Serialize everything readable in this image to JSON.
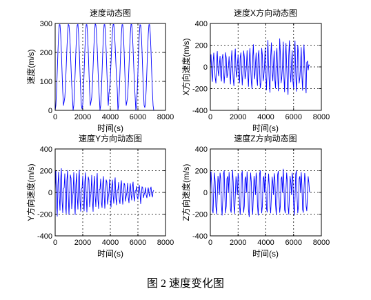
{
  "figure": {
    "caption": "图 2 速度变化图"
  },
  "chart_data": [
    {
      "type": "line",
      "title": "速度动态图",
      "xlabel": "时间(s)",
      "ylabel": "速度(m/s)",
      "xlim": [
        0,
        8000
      ],
      "ylim": [
        0,
        300
      ],
      "xticks": [
        0,
        2000,
        4000,
        6000,
        8000
      ],
      "yticks": [
        0,
        100,
        200,
        300
      ],
      "grid": true,
      "line_color": "#0000ff",
      "x": [
        0,
        50,
        100,
        150,
        200,
        250,
        300,
        350,
        400,
        450,
        500,
        550,
        600,
        650,
        700,
        750,
        800,
        850,
        900,
        950,
        1000,
        1050,
        1100,
        1150,
        1200,
        1250,
        1300,
        1350,
        1400,
        1450,
        1500,
        1550,
        1600,
        1650,
        1700,
        1750,
        1800,
        1850,
        1900,
        1950,
        2000,
        2050,
        2100,
        2150,
        2200,
        2250,
        2300,
        2350,
        2400,
        2450,
        2500,
        2550,
        2600,
        2650,
        2700,
        2750,
        2800,
        2850,
        2900,
        2950,
        3000,
        3050,
        3100,
        3150,
        3200,
        3250,
        3300,
        3350,
        3400,
        3450,
        3500,
        3550,
        3600,
        3650,
        3700,
        3750,
        3800,
        3850,
        3900,
        3950,
        4000,
        4050,
        4100,
        4150,
        4200,
        4250,
        4300,
        4350,
        4400,
        4450,
        4500,
        4550,
        4600,
        4650,
        4700,
        4750,
        4800,
        4850,
        4900,
        4950,
        5000,
        5050,
        5100,
        5150,
        5200,
        5250,
        5300,
        5350,
        5400,
        5450,
        5500,
        5550,
        5600,
        5650,
        5700,
        5750,
        5800,
        5850,
        5900,
        5950,
        6000,
        6050,
        6100,
        6150,
        6200,
        6250,
        6300,
        6350,
        6400,
        6450,
        6500,
        6550,
        6600,
        6650,
        6700,
        6750,
        6800,
        6850,
        6900,
        6950,
        7000,
        7050,
        7100,
        7150
      ],
      "y": [
        0,
        17,
        65,
        132,
        203,
        262,
        296,
        296,
        262,
        203,
        132,
        65,
        17,
        30,
        45,
        88,
        149,
        212,
        265,
        297,
        294,
        265,
        212,
        149,
        88,
        45,
        0,
        17,
        65,
        132,
        203,
        262,
        295,
        297,
        262,
        203,
        132,
        65,
        17,
        5,
        21,
        68,
        134,
        204,
        262,
        296,
        296,
        262,
        203,
        132,
        65,
        17,
        30,
        45,
        88,
        149,
        212,
        265,
        298,
        295,
        265,
        212,
        149,
        88,
        45,
        0,
        17,
        65,
        132,
        203,
        262,
        296,
        296,
        262,
        203,
        132,
        65,
        17,
        60,
        74,
        112,
        165,
        222,
        269,
        296,
        297,
        269,
        222,
        165,
        112,
        74,
        0,
        17,
        65,
        132,
        203,
        262,
        296,
        296,
        262,
        203,
        132,
        65,
        17,
        30,
        45,
        88,
        149,
        212,
        265,
        297,
        296,
        265,
        212,
        149,
        88,
        45,
        0,
        17,
        65,
        132,
        203,
        262,
        296,
        294,
        262,
        203,
        132,
        65,
        17,
        10,
        26,
        72,
        137,
        206,
        263,
        296,
        296,
        262,
        203,
        132,
        65,
        17,
        0
      ]
    },
    {
      "type": "line",
      "title": "速度X方向动态图",
      "xlabel": "时间(s)",
      "ylabel": "X方向速度(m/s)",
      "xlim": [
        0,
        8000
      ],
      "ylim": [
        -400,
        400
      ],
      "xticks": [
        0,
        2000,
        4000,
        6000,
        8000
      ],
      "yticks": [
        -400,
        -200,
        0,
        200,
        400
      ],
      "grid": true,
      "line_color": "#0000ff",
      "x": [
        0,
        50,
        100,
        150,
        200,
        250,
        300,
        350,
        400,
        450,
        500,
        550,
        600,
        650,
        700,
        750,
        800,
        850,
        900,
        950,
        1000,
        1050,
        1100,
        1150,
        1200,
        1250,
        1300,
        1350,
        1400,
        1450,
        1500,
        1550,
        1600,
        1650,
        1700,
        1750,
        1800,
        1850,
        1900,
        1950,
        2000,
        2050,
        2100,
        2150,
        2200,
        2250,
        2300,
        2350,
        2400,
        2450,
        2500,
        2550,
        2600,
        2650,
        2700,
        2750,
        2800,
        2850,
        2900,
        2950,
        3000,
        3050,
        3100,
        3150,
        3200,
        3250,
        3300,
        3350,
        3400,
        3450,
        3500,
        3550,
        3600,
        3650,
        3700,
        3750,
        3800,
        3850,
        3900,
        3950,
        4000,
        4050,
        4100,
        4150,
        4200,
        4250,
        4300,
        4350,
        4400,
        4450,
        4500,
        4550,
        4600,
        4650,
        4700,
        4750,
        4800,
        4850,
        4900,
        4950,
        5000,
        5050,
        5100,
        5150,
        5200,
        5250,
        5300,
        5350,
        5400,
        5450,
        5500,
        5550,
        5600,
        5650,
        5700,
        5750,
        5800,
        5850,
        5900,
        5950,
        6000,
        6050,
        6100,
        6150,
        6200,
        6250,
        6300,
        6350,
        6400,
        6450,
        6500,
        6550,
        6600,
        6650,
        6700,
        6750,
        6800,
        6850,
        6900,
        6950,
        7000,
        7050,
        7100,
        7150
      ],
      "y": [
        0,
        113,
        -53,
        -135,
        38,
        128,
        8,
        -98,
        -150,
        60,
        143,
        -30,
        -83,
        17,
        99,
        -83,
        -132,
        74,
        116,
        -25,
        -149,
        -50,
        132,
        83,
        -99,
        -66,
        0,
        95,
        -61,
        -158,
        44,
        149,
        9,
        -114,
        -175,
        70,
        166,
        -35,
        -96,
        19,
        111,
        -93,
        -148,
        83,
        130,
        -28,
        -167,
        -56,
        148,
        93,
        -111,
        -74,
        0,
        150,
        -70,
        -180,
        50,
        170,
        10,
        -130,
        -200,
        80,
        205,
        -40,
        -110,
        22,
        129,
        -108,
        -172,
        97,
        151,
        -32,
        -194,
        -140,
        172,
        108,
        -129,
        -86,
        0,
        176,
        -82,
        -212,
        59,
        245,
        12,
        -153,
        -235,
        94,
        223,
        -47,
        -129,
        25,
        147,
        -123,
        -196,
        110,
        172,
        -37,
        -221,
        -74,
        260,
        123,
        -147,
        -98,
        0,
        230,
        -89,
        -230,
        64,
        217,
        13,
        -166,
        -255,
        102,
        242,
        -51,
        -140,
        25,
        150,
        -125,
        -200,
        113,
        240,
        -38,
        -225,
        -75,
        200,
        125,
        -150,
        -100,
        0,
        180,
        -84,
        -216,
        60,
        204,
        12,
        -156,
        -240,
        40,
        55,
        -30,
        20,
        10
      ]
    },
    {
      "type": "line",
      "title": "速度Y方向动态图",
      "xlabel": "时间(s)",
      "ylabel": "Y方向速度(m/s)",
      "xlim": [
        0,
        8000
      ],
      "ylim": [
        -400,
        400
      ],
      "xticks": [
        0,
        2000,
        4000,
        6000,
        8000
      ],
      "yticks": [
        -400,
        -200,
        0,
        200,
        400
      ],
      "grid": true,
      "line_color": "#0000ff",
      "x": [
        0,
        50,
        100,
        150,
        200,
        250,
        300,
        350,
        400,
        450,
        500,
        550,
        600,
        650,
        700,
        750,
        800,
        850,
        900,
        950,
        1000,
        1050,
        1100,
        1150,
        1200,
        1250,
        1300,
        1350,
        1400,
        1450,
        1500,
        1550,
        1600,
        1650,
        1700,
        1750,
        1800,
        1850,
        1900,
        1950,
        2000,
        2050,
        2100,
        2150,
        2200,
        2250,
        2300,
        2350,
        2400,
        2450,
        2500,
        2550,
        2600,
        2650,
        2700,
        2750,
        2800,
        2850,
        2900,
        2950,
        3000,
        3050,
        3100,
        3150,
        3200,
        3250,
        3300,
        3350,
        3400,
        3450,
        3500,
        3550,
        3600,
        3650,
        3700,
        3750,
        3800,
        3850,
        3900,
        3950,
        4000,
        4050,
        4100,
        4150,
        4200,
        4250,
        4300,
        4350,
        4400,
        4450,
        4500,
        4550,
        4600,
        4650,
        4700,
        4750,
        4800,
        4850,
        4900,
        4950,
        5000,
        5050,
        5100,
        5150,
        5200,
        5250,
        5300,
        5350,
        5400,
        5450,
        5500,
        5550,
        5600,
        5650,
        5700,
        5750,
        5800,
        5850,
        5900,
        5950,
        6000,
        6050,
        6100,
        6150,
        6200,
        6250,
        6300,
        6350,
        6400,
        6450,
        6500,
        6550,
        6600,
        6650,
        6700,
        6750,
        6800,
        6850,
        6900,
        6950,
        7000,
        7050,
        7100,
        7150
      ],
      "y": [
        0,
        198,
        -99,
        -220,
        66,
        187,
        -44,
        -165,
        121,
        220,
        -77,
        -187,
        33,
        43,
        172,
        -129,
        -194,
        108,
        204,
        -22,
        -204,
        -43,
        161,
        129,
        -151,
        -65,
        0,
        185,
        -92,
        -205,
        62,
        174,
        -41,
        -154,
        113,
        205,
        -72,
        -174,
        31,
        38,
        152,
        -114,
        -171,
        95,
        181,
        -19,
        -181,
        -38,
        143,
        114,
        -133,
        -57,
        0,
        158,
        -79,
        -175,
        53,
        149,
        -35,
        -131,
        96,
        175,
        -61,
        -149,
        26,
        31,
        124,
        -93,
        -140,
        78,
        147,
        -16,
        -147,
        -31,
        116,
        93,
        -109,
        -47,
        0,
        122,
        -61,
        -135,
        41,
        115,
        -27,
        -101,
        74,
        135,
        -47,
        -115,
        20,
        23,
        92,
        -69,
        -104,
        58,
        109,
        -12,
        -109,
        -23,
        86,
        69,
        -81,
        -35,
        0,
        86,
        -43,
        -95,
        29,
        81,
        -19,
        -71,
        52,
        95,
        -33,
        -81,
        14,
        14,
        56,
        -42,
        -63,
        35,
        67,
        -7,
        -105,
        -14,
        53,
        42,
        -49,
        -21,
        0,
        45,
        -23,
        -50,
        15,
        43,
        -10,
        -38,
        28,
        50,
        -18,
        -43,
        8,
        20
      ]
    },
    {
      "type": "line",
      "title": "速度Z方向动态图",
      "xlabel": "时间(s)",
      "ylabel": "Z方向速度(m/s)",
      "xlim": [
        0,
        8000
      ],
      "ylim": [
        -400,
        400
      ],
      "xticks": [
        0,
        2000,
        4000,
        6000,
        8000
      ],
      "yticks": [
        -400,
        -200,
        0,
        200,
        400
      ],
      "grid": true,
      "line_color": "#0000ff",
      "x": [
        0,
        50,
        100,
        150,
        200,
        250,
        300,
        350,
        400,
        450,
        500,
        550,
        600,
        650,
        700,
        750,
        800,
        850,
        900,
        950,
        1000,
        1050,
        1100,
        1150,
        1200,
        1250,
        1300,
        1350,
        1400,
        1450,
        1500,
        1550,
        1600,
        1650,
        1700,
        1750,
        1800,
        1850,
        1900,
        1950,
        2000,
        2050,
        2100,
        2150,
        2200,
        2250,
        2300,
        2350,
        2400,
        2450,
        2500,
        2550,
        2600,
        2650,
        2700,
        2750,
        2800,
        2850,
        2900,
        2950,
        3000,
        3050,
        3100,
        3150,
        3200,
        3250,
        3300,
        3350,
        3400,
        3450,
        3500,
        3550,
        3600,
        3650,
        3700,
        3750,
        3800,
        3850,
        3900,
        3950,
        4000,
        4050,
        4100,
        4150,
        4200,
        4250,
        4300,
        4350,
        4400,
        4450,
        4500,
        4550,
        4600,
        4650,
        4700,
        4750,
        4800,
        4850,
        4900,
        4950,
        5000,
        5050,
        5100,
        5150,
        5200,
        5250,
        5300,
        5350,
        5400,
        5450,
        5500,
        5550,
        5600,
        5650,
        5700,
        5750,
        5800,
        5850,
        5900,
        5950,
        6000,
        6050,
        6100,
        6150,
        6200,
        6250,
        6300,
        6350,
        6400,
        6450,
        6500,
        6550,
        6600,
        6650,
        6700,
        6750,
        6800,
        6850,
        6900,
        6950,
        7000,
        7050,
        7100,
        7150
      ],
      "y": [
        0,
        190,
        70,
        -160,
        -190,
        30,
        180,
        100,
        -130,
        -200,
        -30,
        150,
        90,
        -21,
        179,
        126,
        -116,
        -210,
        -63,
        168,
        200,
        -42,
        -189,
        -126,
        126,
        147,
        0,
        185,
        68,
        -156,
        -185,
        29,
        205,
        98,
        -127,
        -195,
        -29,
        146,
        88,
        -21,
        174,
        123,
        -113,
        -205,
        -62,
        164,
        195,
        -41,
        -185,
        -123,
        123,
        144,
        0,
        190,
        70,
        -160,
        -225,
        30,
        180,
        100,
        -130,
        -200,
        -30,
        150,
        90,
        -21,
        179,
        126,
        -116,
        -210,
        -63,
        168,
        200,
        -42,
        -189,
        -126,
        126,
        147,
        0,
        181,
        67,
        -152,
        -181,
        29,
        171,
        60,
        -124,
        -190,
        -29,
        143,
        86,
        -21,
        174,
        123,
        -113,
        -205,
        -62,
        164,
        195,
        -41,
        -185,
        -123,
        123,
        144,
        0,
        215,
        70,
        -160,
        -190,
        30,
        180,
        100,
        -130,
        -200,
        -30,
        150,
        90,
        -21,
        179,
        126,
        -116,
        -210,
        -63,
        168,
        200,
        -42,
        -189,
        -126,
        126,
        147,
        0,
        185,
        68,
        -156,
        -185,
        29,
        176,
        98,
        -127,
        -170,
        -29,
        146,
        88,
        0
      ]
    }
  ]
}
